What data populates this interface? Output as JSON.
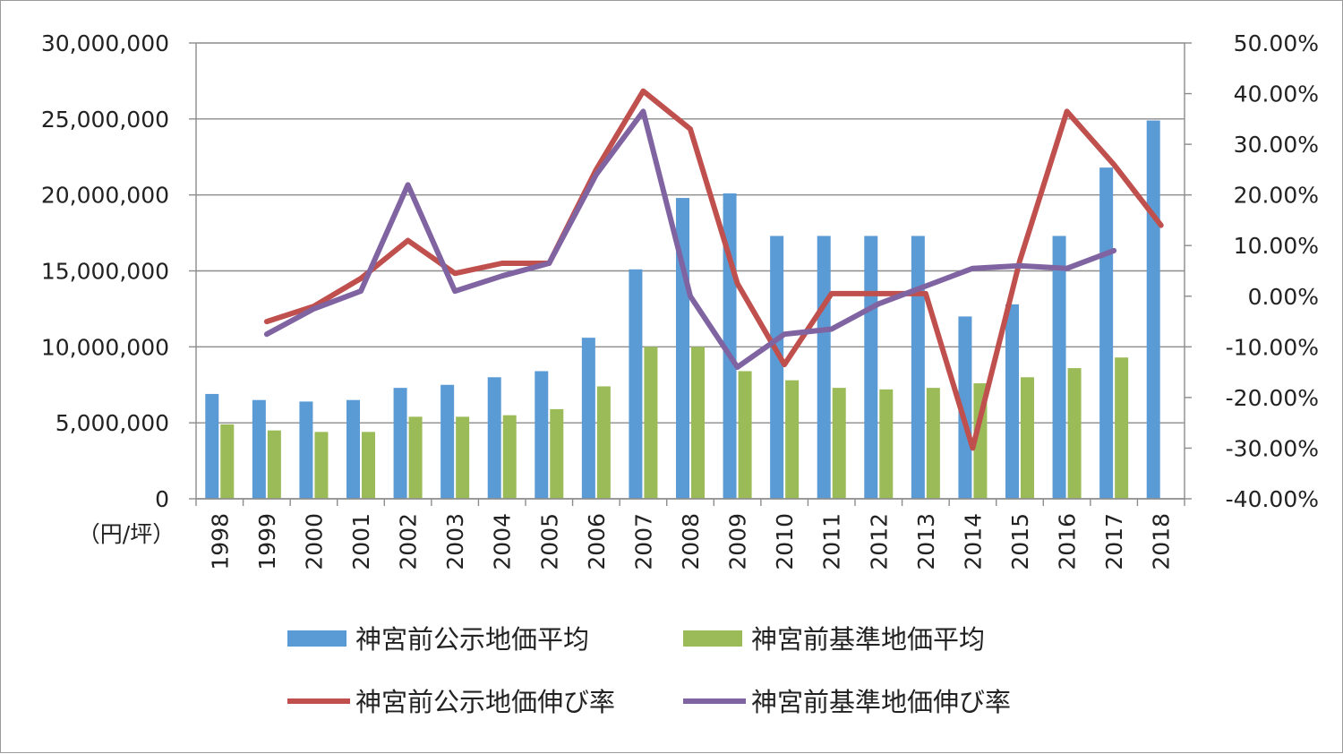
{
  "chart_data": {
    "type": "bar",
    "categories": [
      "1998",
      "1999",
      "2000",
      "2001",
      "2002",
      "2003",
      "2004",
      "2005",
      "2006",
      "2007",
      "2008",
      "2009",
      "2010",
      "2011",
      "2012",
      "2013",
      "2014",
      "2015",
      "2016",
      "2017",
      "2018"
    ],
    "bar_series": [
      {
        "name": "神宮前公示地価平均",
        "color": "#5b9bd5",
        "values": [
          6900000,
          6500000,
          6400000,
          6500000,
          7300000,
          7500000,
          8000000,
          8400000,
          10600000,
          15100000,
          19800000,
          20100000,
          17300000,
          17300000,
          17300000,
          17300000,
          12000000,
          12800000,
          17300000,
          21800000,
          24900000
        ]
      },
      {
        "name": "神宮前基準地価平均",
        "color": "#9bbb59",
        "values": [
          4900000,
          4500000,
          4400000,
          4400000,
          5400000,
          5400000,
          5500000,
          5900000,
          7400000,
          10000000,
          10000000,
          8400000,
          7800000,
          7300000,
          7200000,
          7300000,
          7600000,
          8000000,
          8600000,
          9300000,
          null
        ]
      }
    ],
    "line_series": [
      {
        "name": "神宮前公示地価伸び率",
        "color": "#c0504d",
        "axis": "right",
        "values": [
          null,
          -5.0,
          -2.0,
          3.5,
          11.0,
          4.5,
          6.5,
          6.5,
          25.0,
          40.5,
          33.0,
          2.5,
          -13.5,
          0.5,
          0.5,
          0.5,
          -30.0,
          7.0,
          36.5,
          26.0,
          14.0
        ]
      },
      {
        "name": "神宮前基準地価伸び率",
        "color": "#8064a2",
        "axis": "right",
        "values": [
          null,
          -7.5,
          -2.5,
          1.0,
          22.0,
          1.0,
          4.0,
          6.5,
          24.0,
          36.5,
          0.0,
          -14.0,
          -7.5,
          -6.5,
          -1.5,
          2.0,
          5.5,
          6.0,
          5.5,
          9.0,
          null
        ]
      }
    ],
    "left_axis": {
      "ticks": [
        "0",
        "5,000,000",
        "10,000,000",
        "15,000,000",
        "20,000,000",
        "25,000,000",
        "30,000,000"
      ],
      "range": [
        0,
        30000000
      ],
      "unit_label": "（円/坪）"
    },
    "right_axis": {
      "ticks": [
        "-40.00%",
        "-30.00%",
        "-20.00%",
        "-10.00%",
        "0.00%",
        "10.00%",
        "20.00%",
        "30.00%",
        "40.00%",
        "50.00%"
      ],
      "range": [
        -40,
        50
      ]
    },
    "grid": true,
    "legend_position": "bottom"
  }
}
